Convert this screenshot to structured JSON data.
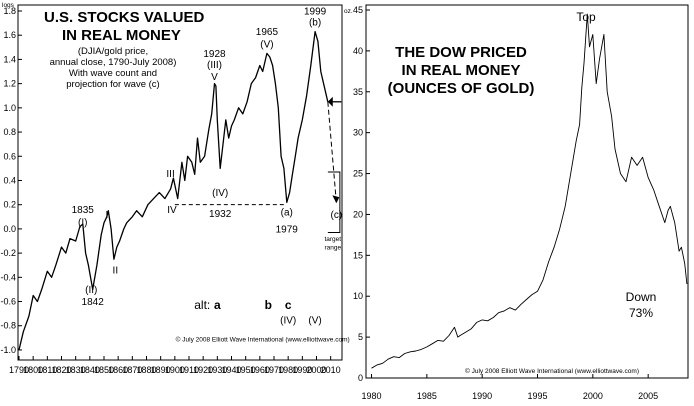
{
  "chart_data": [
    {
      "type": "line",
      "title": "U.S. STOCKS VALUED\nIN REAL MONEY",
      "subtitle": [
        "(DJIA/gold price,",
        "annual close, 1790-July 2008)",
        "With wave count and",
        "projection for wave (c)"
      ],
      "ylabel": "logs",
      "xlim": [
        1790,
        2018
      ],
      "ylim": [
        -1.05,
        1.8
      ],
      "x_ticks": [
        1790,
        1800,
        1810,
        1820,
        1830,
        1840,
        1850,
        1860,
        1870,
        1880,
        1890,
        1900,
        1910,
        1920,
        1930,
        1940,
        1950,
        1960,
        1970,
        1980,
        1990,
        2000,
        2010
      ],
      "y_ticks": [
        "1.8",
        "1.6",
        "1.4",
        "1.2",
        "1.0",
        "0.8",
        "0.6",
        "0.4",
        "0.2",
        "0.0",
        "-0.2",
        "-0.4",
        "-0.6",
        "-0.8",
        "-1.0"
      ],
      "series": [
        {
          "x": [
            1790,
            1793,
            1797,
            1800,
            1803,
            1806,
            1810,
            1813,
            1816,
            1820,
            1823,
            1826,
            1830,
            1833,
            1835,
            1837,
            1839,
            1842,
            1845,
            1848,
            1850,
            1852,
            1853,
            1855,
            1857,
            1859,
            1861,
            1864,
            1866,
            1870,
            1873,
            1877,
            1881,
            1885,
            1889,
            1893,
            1897,
            1899,
            1902,
            1905,
            1907,
            1909,
            1912,
            1914,
            1916,
            1918,
            1921,
            1924,
            1926,
            1928,
            1929,
            1930,
            1932,
            1934,
            1936,
            1938,
            1940,
            1942,
            1945,
            1948,
            1951,
            1954,
            1957,
            1960,
            1962,
            1965,
            1967,
            1969,
            1971,
            1973,
            1975,
            1977,
            1979,
            1981,
            1983,
            1985,
            1987,
            1990,
            1993,
            1996,
            1999,
            2001,
            2003,
            2006,
            2008
          ],
          "values": [
            -1.0,
            -0.85,
            -0.72,
            -0.55,
            -0.6,
            -0.5,
            -0.35,
            -0.4,
            -0.3,
            -0.15,
            -0.2,
            -0.08,
            -0.1,
            0.02,
            0.04,
            -0.2,
            -0.3,
            -0.5,
            -0.3,
            -0.05,
            0.05,
            0.1,
            0.15,
            0.0,
            -0.25,
            -0.15,
            -0.1,
            0.0,
            0.05,
            0.1,
            0.15,
            0.1,
            0.2,
            0.25,
            0.3,
            0.25,
            0.33,
            0.42,
            0.25,
            0.55,
            0.4,
            0.6,
            0.55,
            0.45,
            0.75,
            0.55,
            0.6,
            0.82,
            0.95,
            1.2,
            1.18,
            0.9,
            0.5,
            0.7,
            0.9,
            0.75,
            0.85,
            0.9,
            1.0,
            0.95,
            1.05,
            1.2,
            1.25,
            1.35,
            1.3,
            1.45,
            1.42,
            1.35,
            1.2,
            1.0,
            0.6,
            0.5,
            0.22,
            0.3,
            0.45,
            0.6,
            0.75,
            0.9,
            1.1,
            1.35,
            1.63,
            1.55,
            1.3,
            1.15,
            1.05
          ]
        }
      ],
      "projection": {
        "x": [
          2008,
          2014
        ],
        "values": [
          1.05,
          0.22
        ]
      },
      "support_line": {
        "x": [
          1900,
          1979
        ],
        "values": [
          0.2,
          0.2
        ]
      },
      "annotations": [
        {
          "text": "1999",
          "x": 1999,
          "y": 1.77
        },
        {
          "text": "(b)",
          "x": 1999,
          "y": 1.68
        },
        {
          "text": "1965",
          "x": 1965,
          "y": 1.6
        },
        {
          "text": "(V)",
          "x": 1965,
          "y": 1.5
        },
        {
          "text": "1928",
          "x": 1928,
          "y": 1.42
        },
        {
          "text": "(III)",
          "x": 1928,
          "y": 1.33
        },
        {
          "text": "V",
          "x": 1928,
          "y": 1.23
        },
        {
          "text": "III",
          "x": 1897,
          "y": 0.43
        },
        {
          "text": "IV",
          "x": 1898,
          "y": 0.13
        },
        {
          "text": "(IV)",
          "x": 1932,
          "y": 0.27
        },
        {
          "text": "1932",
          "x": 1932,
          "y": 0.1
        },
        {
          "text": "(a)",
          "x": 1979,
          "y": 0.11
        },
        {
          "text": "1979",
          "x": 1979,
          "y": -0.03
        },
        {
          "text": "(c)",
          "x": 2014,
          "y": 0.09
        },
        {
          "text": "1835",
          "x": 1835,
          "y": 0.13
        },
        {
          "text": "(I)",
          "x": 1835,
          "y": 0.03
        },
        {
          "text": "I",
          "x": 1852,
          "y": 0.09
        },
        {
          "text": "II",
          "x": 1858,
          "y": -0.37
        },
        {
          "text": "(II)",
          "x": 1841,
          "y": -0.53
        },
        {
          "text": "1842",
          "x": 1842,
          "y": -0.63
        }
      ],
      "target_label": [
        "target",
        "range"
      ],
      "alt_labels": {
        "prefix": "alt:",
        "a": "a",
        "b": "b",
        "c": "c",
        "iv": "(IV)",
        "v": "(V)"
      },
      "copyright": "© July 2008 Elliott Wave International (www.elliottwave.com)"
    },
    {
      "type": "line",
      "title": "THE DOW PRICED\nIN REAL MONEY\n(OUNCES OF GOLD)",
      "ylabel": "oz.",
      "xlim": [
        1979.5,
        2008.6
      ],
      "ylim": [
        0,
        45
      ],
      "x_ticks": [
        1980,
        1985,
        1990,
        1995,
        2000,
        2005
      ],
      "y_ticks": [
        0,
        5,
        10,
        15,
        20,
        25,
        30,
        35,
        40,
        45
      ],
      "series": [
        {
          "x": [
            1980.0,
            1980.5,
            1981.0,
            1981.5,
            1982.0,
            1982.5,
            1983.0,
            1983.5,
            1984.0,
            1984.5,
            1985.0,
            1985.5,
            1986.0,
            1986.5,
            1987.0,
            1987.5,
            1987.8,
            1988.0,
            1988.5,
            1989.0,
            1989.5,
            1990.0,
            1990.5,
            1991.0,
            1991.5,
            1992.0,
            1992.5,
            1993.0,
            1993.5,
            1994.0,
            1994.5,
            1995.0,
            1995.5,
            1996.0,
            1996.5,
            1997.0,
            1997.5,
            1998.0,
            1998.5,
            1998.8,
            1999.0,
            1999.2,
            1999.5,
            1999.7,
            2000.0,
            2000.3,
            2000.6,
            2001.0,
            2001.3,
            2001.7,
            2002.0,
            2002.5,
            2003.0,
            2003.5,
            2004.0,
            2004.5,
            2005.0,
            2005.5,
            2006.0,
            2006.5,
            2006.8,
            2007.0,
            2007.4,
            2007.8,
            2008.0,
            2008.3,
            2008.5
          ],
          "values": [
            1.2,
            1.6,
            1.8,
            2.3,
            2.6,
            2.5,
            3.0,
            3.2,
            3.3,
            3.5,
            3.8,
            4.2,
            4.6,
            4.5,
            5.2,
            6.2,
            5.0,
            5.2,
            5.6,
            6.0,
            6.8,
            7.1,
            7.0,
            7.4,
            8.0,
            8.2,
            8.6,
            8.3,
            9.0,
            9.6,
            10.2,
            10.6,
            12.0,
            14.2,
            16.0,
            18.2,
            21.0,
            25.0,
            29.0,
            31.0,
            35.5,
            38.5,
            44.5,
            40.5,
            42.0,
            36.0,
            39.0,
            42.0,
            35.0,
            32.0,
            28.0,
            25.0,
            24.0,
            27.0,
            26.0,
            27.0,
            24.5,
            23.0,
            21.0,
            19.0,
            20.5,
            21.0,
            19.0,
            15.5,
            16.0,
            14.0,
            11.5
          ]
        }
      ],
      "annotations": {
        "top": "Top",
        "down": "Down",
        "pct": "73%"
      },
      "copyright": "© July 2008 Elliott Wave International (www.elliottwave.com)"
    }
  ]
}
